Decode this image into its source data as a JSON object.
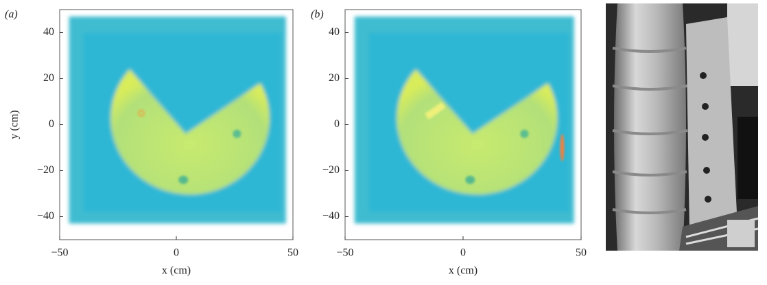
{
  "panels": [
    {
      "label": "(a)",
      "xlabel": "x (cm)",
      "ylabel": "y (cm)",
      "xlim": [
        -50,
        50
      ],
      "ylim": [
        -50,
        50
      ],
      "xticks": [
        {
          "value": -50,
          "label": "−50"
        },
        0,
        50
      ],
      "yticks": [
        40,
        20,
        0,
        {
          "value": -20,
          "label": "−20"
        },
        {
          "value": -40,
          "label": "−40"
        }
      ]
    },
    {
      "label": "(b)",
      "xlabel": "x (cm)",
      "xlim": [
        -50,
        50
      ],
      "ylim": [
        -50,
        50
      ],
      "xticks": [
        {
          "value": -50,
          "label": "−50"
        },
        0,
        50
      ],
      "yticks": [
        40,
        20,
        0,
        {
          "value": -20,
          "label": "−20"
        },
        {
          "value": -40,
          "label": "−40"
        }
      ]
    }
  ]
}
